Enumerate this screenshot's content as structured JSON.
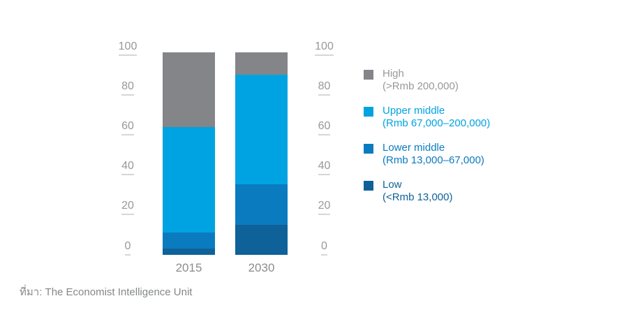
{
  "source_note": "ที่มา: The Economist Intelligence Unit",
  "x_labels": {
    "left_bar": "2015",
    "right_bar": "2030"
  },
  "legend": {
    "items": [
      {
        "label": "High",
        "range": "(>Rmb 200,000)",
        "swatch_color": "#838588",
        "text_color": "#96989b"
      },
      {
        "label": "Upper middle",
        "range": "(Rmb 67,000–200,000)",
        "swatch_color": "#00a3e1",
        "text_color": "#00a3e1"
      },
      {
        "label": "Lower middle",
        "range": "(Rmb 13,000–67,000)",
        "swatch_color": "#0b7bc0",
        "text_color": "#0b7bc0"
      },
      {
        "label": "Low",
        "range": "(<Rmb 13,000)",
        "swatch_color": "#0f6199",
        "text_color": "#0f6199"
      }
    ]
  },
  "chart_data": {
    "type": "bar",
    "stacked": true,
    "title": "",
    "xlabel": "",
    "ylabel": "",
    "categories": [
      "2015",
      "2030"
    ],
    "series": [
      {
        "name": "Low",
        "income_range": "(<Rmb 13,000)",
        "color": "#0f6199",
        "values": [
          3,
          15
        ]
      },
      {
        "name": "Lower middle",
        "income_range": "(Rmb 13,000–67,000)",
        "color": "#0b7bc0",
        "values": [
          8,
          20
        ]
      },
      {
        "name": "Upper middle",
        "income_range": "(Rmb 67,000–200,000)",
        "color": "#00a3e1",
        "values": [
          52,
          54
        ]
      },
      {
        "name": "High",
        "income_range": "(>Rmb 200,000)",
        "color": "#838588",
        "values": [
          37,
          11
        ]
      }
    ],
    "stack_order_bottom_to_top": [
      "Low",
      "Lower middle",
      "Upper middle",
      "High"
    ],
    "ylim": [
      0,
      100
    ],
    "yticks": [
      0,
      20,
      40,
      60,
      80,
      100
    ],
    "y_axis_sides": [
      "left",
      "right"
    ],
    "grid": false,
    "legend_position": "right"
  },
  "colors": {
    "background": "#ffffff",
    "axis_text": "#96989b",
    "tick_underline": "#d5d6d8",
    "x_label_text": "#8a8c8f",
    "source_text": "#85878a"
  }
}
